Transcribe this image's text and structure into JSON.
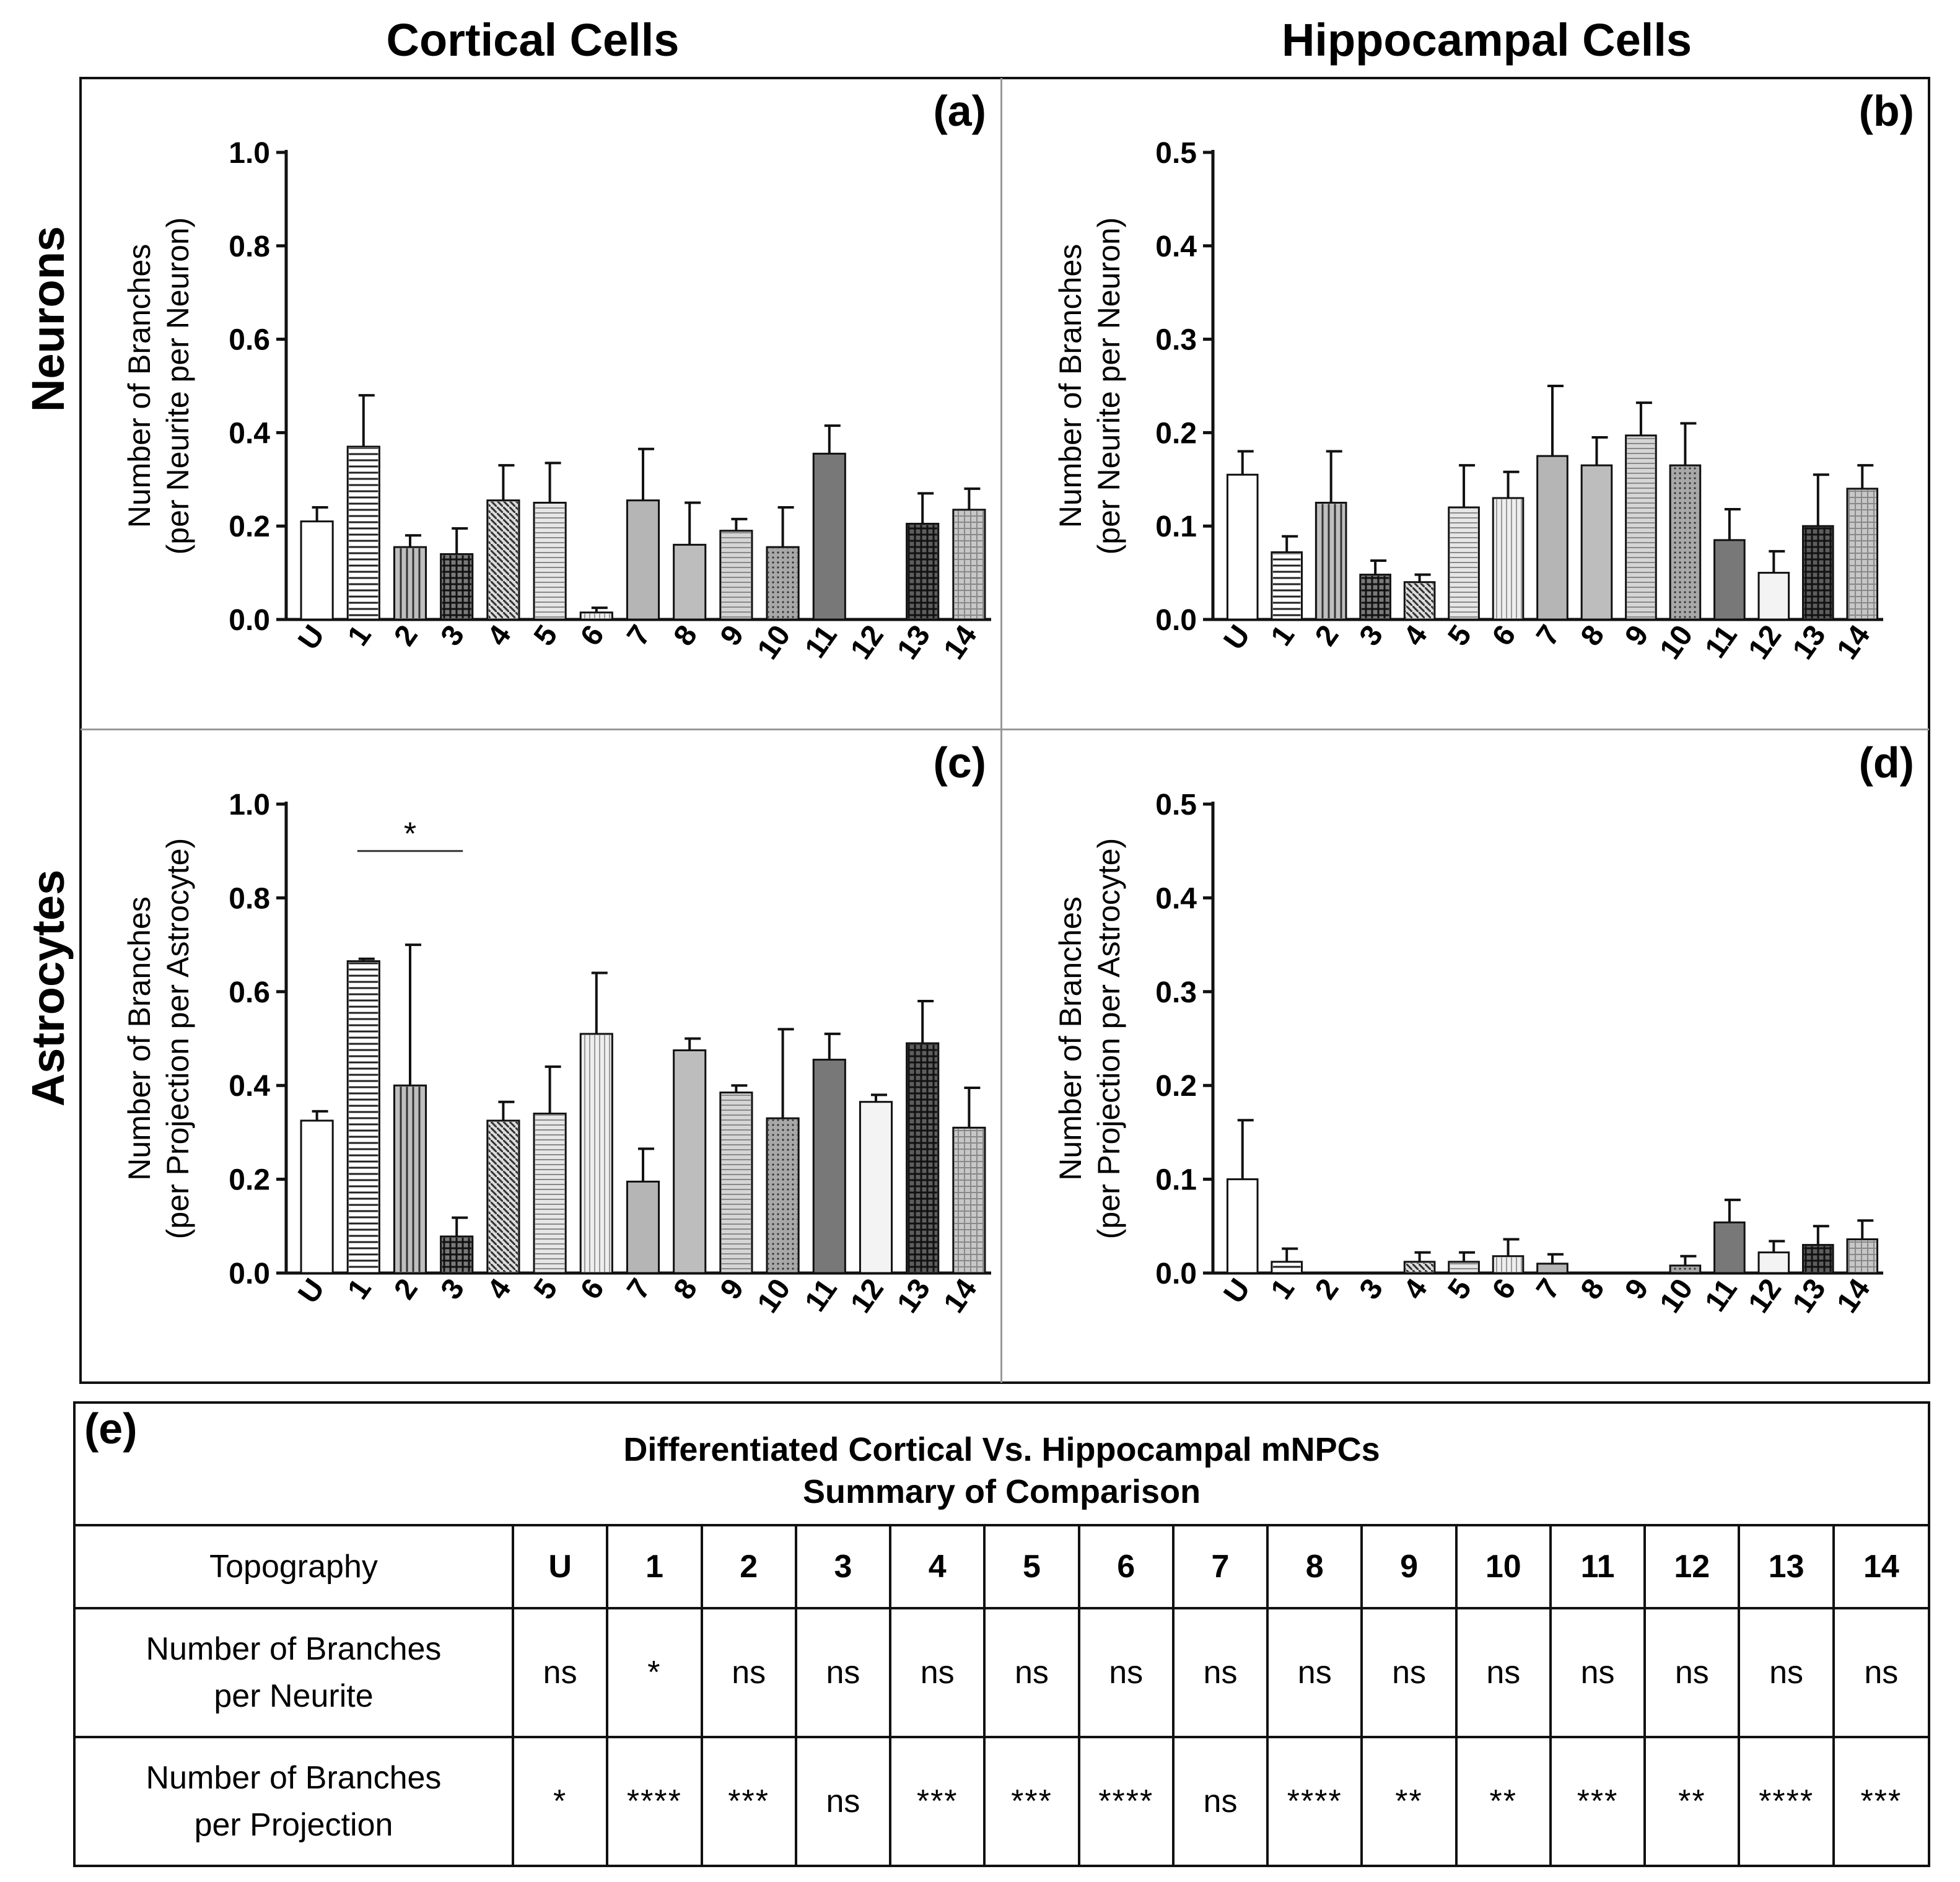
{
  "titles": {
    "col_left": "Cortical Cells",
    "col_right": "Hippocampal Cells",
    "row_top": "Neurons",
    "row_bottom": "Astrocytes"
  },
  "chart_data": [
    {
      "type": "bar",
      "panel_label": "(a)",
      "categories": [
        "U",
        "1",
        "2",
        "3",
        "4",
        "5",
        "6",
        "7",
        "8",
        "9",
        "10",
        "11",
        "12",
        "13",
        "14"
      ],
      "values": [
        0.21,
        0.37,
        0.155,
        0.14,
        0.255,
        0.25,
        0.015,
        0.255,
        0.16,
        0.19,
        0.155,
        0.355,
        0,
        0.205,
        0.235
      ],
      "errors": [
        0.03,
        0.11,
        0.025,
        0.055,
        0.075,
        0.085,
        0.01,
        0.11,
        0.09,
        0.025,
        0.085,
        0.06,
        0,
        0.065,
        0.045
      ],
      "ylabel": [
        "Number of Branches",
        "(per Neurite per Neuron)"
      ],
      "ylim": [
        0,
        1.0
      ],
      "yticks": [
        "0.0",
        "0.2",
        "0.4",
        "0.6",
        "0.8",
        "1.0"
      ],
      "annotations": []
    },
    {
      "type": "bar",
      "panel_label": "(b)",
      "categories": [
        "U",
        "1",
        "2",
        "3",
        "4",
        "5",
        "6",
        "7",
        "8",
        "9",
        "10",
        "11",
        "12",
        "13",
        "14"
      ],
      "values": [
        0.155,
        0.072,
        0.125,
        0.048,
        0.04,
        0.12,
        0.13,
        0.175,
        0.165,
        0.197,
        0.165,
        0.085,
        0.05,
        0.1,
        0.14
      ],
      "errors": [
        0.025,
        0.017,
        0.055,
        0.015,
        0.008,
        0.045,
        0.028,
        0.075,
        0.03,
        0.035,
        0.045,
        0.033,
        0.023,
        0.055,
        0.025
      ],
      "ylabel": [
        "Number of Branches",
        "(per Neurite per Neuron)"
      ],
      "ylim": [
        0,
        0.5
      ],
      "yticks": [
        "0.0",
        "0.1",
        "0.2",
        "0.3",
        "0.4",
        "0.5"
      ],
      "annotations": []
    },
    {
      "type": "bar",
      "panel_label": "(c)",
      "categories": [
        "U",
        "1",
        "2",
        "3",
        "4",
        "5",
        "6",
        "7",
        "8",
        "9",
        "10",
        "11",
        "12",
        "13",
        "14"
      ],
      "values": [
        0.325,
        0.665,
        0.4,
        0.078,
        0.325,
        0.34,
        0.51,
        0.195,
        0.475,
        0.385,
        0.33,
        0.455,
        0.365,
        0.49,
        0.31
      ],
      "errors": [
        0.02,
        0.005,
        0.3,
        0.04,
        0.04,
        0.1,
        0.13,
        0.07,
        0.025,
        0.015,
        0.19,
        0.055,
        0.015,
        0.09,
        0.085
      ],
      "ylabel": [
        "Number of Branches",
        "(per Projection per Astrocyte)"
      ],
      "ylim": [
        0,
        1.0
      ],
      "yticks": [
        "0.0",
        "0.2",
        "0.4",
        "0.6",
        "0.8",
        "1.0"
      ],
      "annotations": [
        {
          "text": "*",
          "from": "1",
          "to": "3"
        }
      ]
    },
    {
      "type": "bar",
      "panel_label": "(d)",
      "categories": [
        "U",
        "1",
        "2",
        "3",
        "4",
        "5",
        "6",
        "7",
        "8",
        "9",
        "10",
        "11",
        "12",
        "13",
        "14"
      ],
      "values": [
        0.1,
        0.012,
        0,
        0,
        0.012,
        0.012,
        0.018,
        0.01,
        0,
        0,
        0.008,
        0.054,
        0.022,
        0.03,
        0.036
      ],
      "errors": [
        0.063,
        0.014,
        0,
        0,
        0.01,
        0.01,
        0.018,
        0.01,
        0,
        0,
        0.01,
        0.024,
        0.012,
        0.02,
        0.02
      ],
      "ylabel": [
        "Number of Branches",
        "(per Projection per Astrocyte)"
      ],
      "ylim": [
        0,
        0.5
      ],
      "yticks": [
        "0.0",
        "0.1",
        "0.2",
        "0.3",
        "0.4",
        "0.5"
      ],
      "annotations": []
    }
  ],
  "bar_styles": {
    "U": {
      "fill": "#ffffff",
      "pattern": "none"
    },
    "1": {
      "fill": "#ffffff",
      "pattern": "hlines"
    },
    "2": {
      "fill": "#bfbfbf",
      "pattern": "vlines"
    },
    "3": {
      "fill": "#7a7a7a",
      "pattern": "grid"
    },
    "4": {
      "fill": "#dcdcdc",
      "pattern": "diag"
    },
    "5": {
      "fill": "#e6e6e6",
      "pattern": "hlines-fine"
    },
    "6": {
      "fill": "#eeeeee",
      "pattern": "vlines-fine"
    },
    "7": {
      "fill": "#b5b5b5",
      "pattern": "none"
    },
    "8": {
      "fill": "#bdbdbd",
      "pattern": "none"
    },
    "9": {
      "fill": "#d5d5d5",
      "pattern": "hlines-fine"
    },
    "10": {
      "fill": "#a8a8a8",
      "pattern": "dots"
    },
    "11": {
      "fill": "#787878",
      "pattern": "none"
    },
    "12": {
      "fill": "#f3f3f3",
      "pattern": "none"
    },
    "13": {
      "fill": "#5e5e5e",
      "pattern": "grid"
    },
    "14": {
      "fill": "#c7c7c7",
      "pattern": "grid-light"
    }
  },
  "summary": {
    "label": "(e)",
    "title_line1": "Differentiated Cortical Vs. Hippocampal mNPCs",
    "title_line2": "Summary of Comparison",
    "header_label": "Topography",
    "columns": [
      "U",
      "1",
      "2",
      "3",
      "4",
      "5",
      "6",
      "7",
      "8",
      "9",
      "10",
      "11",
      "12",
      "13",
      "14"
    ],
    "rows": [
      {
        "label_line1": "Number of  Branches",
        "label_line2": "per Neurite",
        "values": [
          "ns",
          "*",
          "ns",
          "ns",
          "ns",
          "ns",
          "ns",
          "ns",
          "ns",
          "ns",
          "ns",
          "ns",
          "ns",
          "ns",
          "ns"
        ]
      },
      {
        "label_line1": "Number of Branches",
        "label_line2": "per Projection",
        "values": [
          "*",
          "****",
          "***",
          "ns",
          "***",
          "***",
          "****",
          "ns",
          "****",
          "**",
          "**",
          "***",
          "**",
          "****",
          "***"
        ]
      }
    ]
  }
}
